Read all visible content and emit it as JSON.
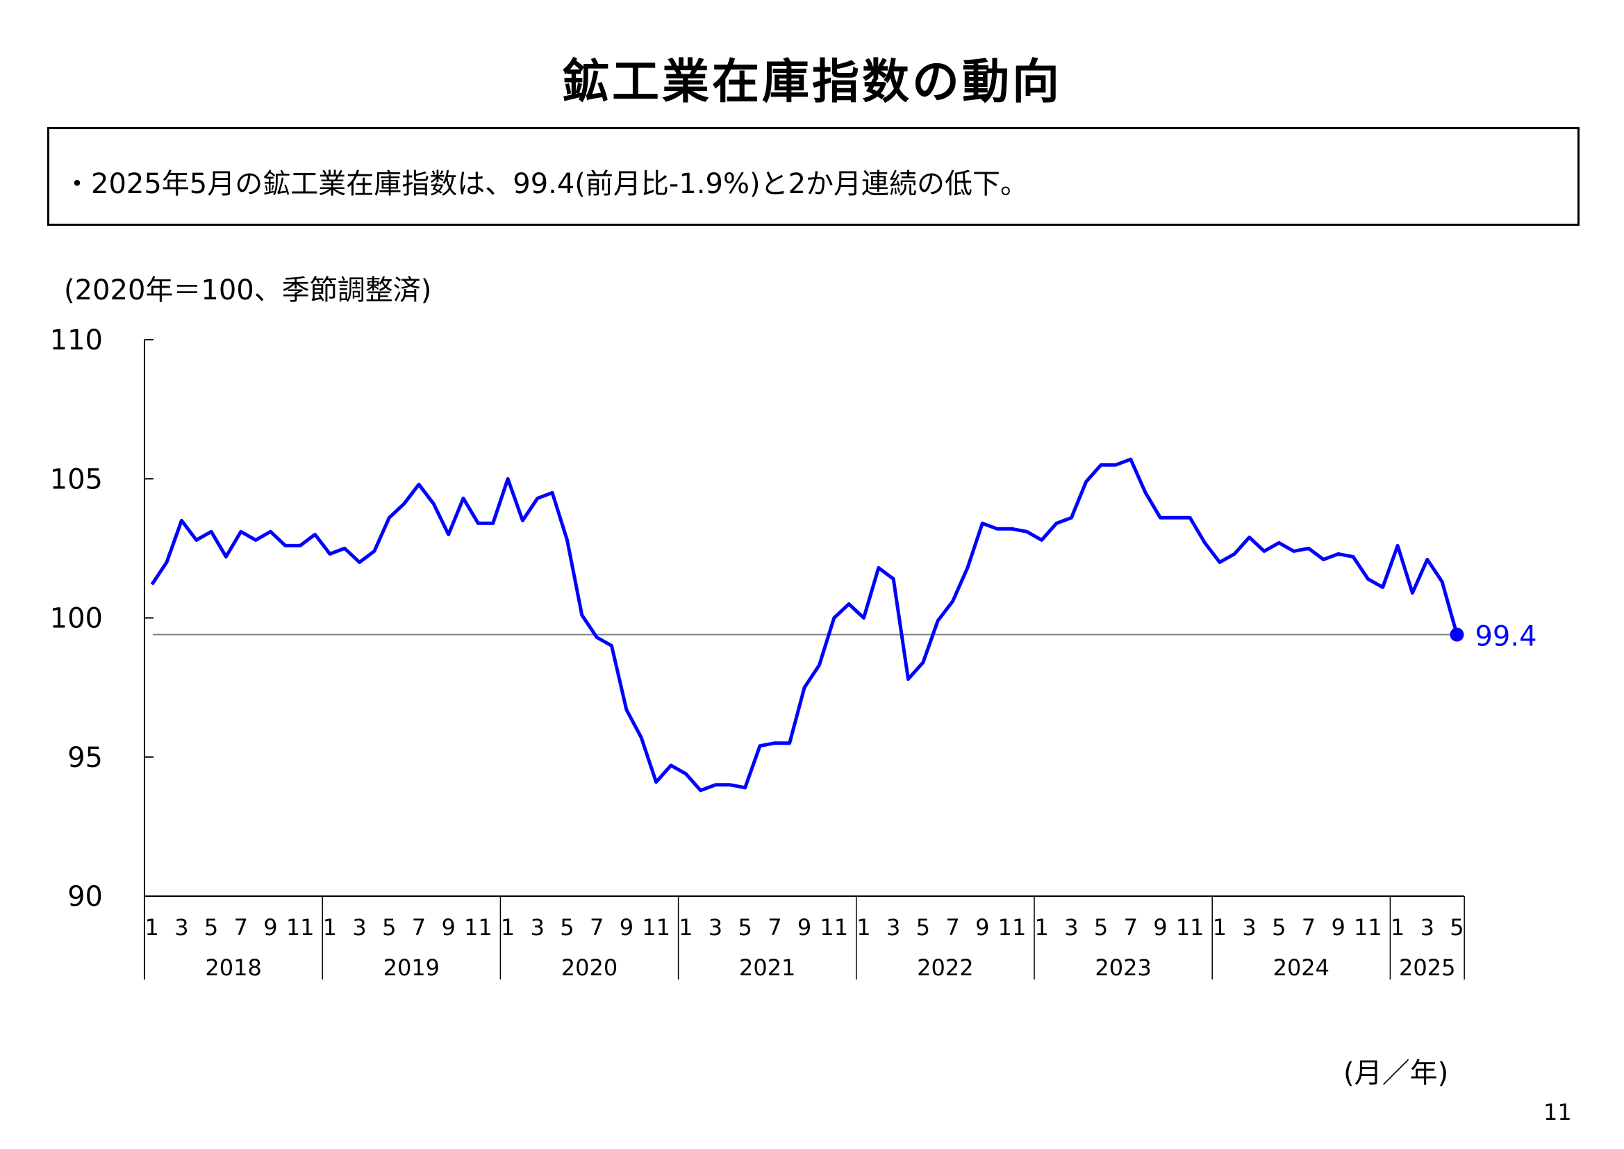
{
  "title": "鉱工業在庫指数の動向",
  "summary": "・2025年5月の鉱工業在庫指数は、99.4(前月比-1.9%)と2か月連続の低下。",
  "page_number": "11",
  "colors": {
    "line": "#0000ff",
    "axis": "#000000",
    "reference_line": "#808080"
  },
  "chart_data": {
    "type": "line",
    "title": "",
    "ylabel": "(2020年＝100、季節調整済)",
    "xlabel": "(月／年)",
    "ylim": [
      90,
      110
    ],
    "yticks": [
      "90",
      "95",
      "100",
      "105",
      "110"
    ],
    "grid": false,
    "years": [
      {
        "label": "2018",
        "months": 12
      },
      {
        "label": "2019",
        "months": 12
      },
      {
        "label": "2020",
        "months": 12
      },
      {
        "label": "2021",
        "months": 12
      },
      {
        "label": "2022",
        "months": 12
      },
      {
        "label": "2023",
        "months": 12
      },
      {
        "label": "2024",
        "months": 12
      },
      {
        "label": "2025",
        "months": 5
      }
    ],
    "month_labels": [
      "1",
      "3",
      "5",
      "7",
      "9",
      "11"
    ],
    "month_labels_2025": [
      "1",
      "3",
      "5"
    ],
    "series": [
      {
        "values": [
          101.2,
          102.0,
          103.5,
          102.8,
          103.1,
          102.2,
          103.1,
          102.8,
          103.1,
          102.6,
          102.6,
          103.0,
          102.3,
          102.5,
          102.0,
          102.4,
          103.6,
          104.1,
          104.8,
          104.1,
          103.0,
          104.3,
          103.4,
          103.4,
          105.0,
          103.5,
          104.3,
          104.5,
          102.8,
          100.1,
          99.3,
          99.0,
          96.7,
          95.7,
          94.1,
          94.7,
          94.4,
          93.8,
          94.0,
          94.0,
          93.9,
          95.4,
          95.5,
          95.5,
          97.5,
          98.3,
          100.0,
          100.5,
          100.0,
          101.8,
          101.4,
          97.8,
          98.4,
          99.9,
          100.6,
          101.8,
          103.4,
          103.2,
          103.2,
          103.1,
          102.8,
          103.4,
          103.6,
          104.9,
          105.5,
          105.5,
          105.7,
          104.5,
          103.6,
          103.6,
          103.6,
          102.7,
          102.0,
          102.3,
          102.9,
          102.4,
          102.7,
          102.4,
          102.5,
          102.1,
          102.3,
          102.2,
          101.4,
          101.1,
          102.6,
          100.9,
          102.1,
          101.3,
          99.4
        ]
      }
    ],
    "annotation": {
      "text": "99.4",
      "value": 99.4
    },
    "reference_line": 99.4
  }
}
